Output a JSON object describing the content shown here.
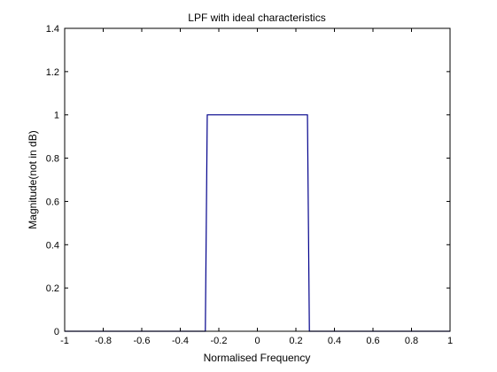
{
  "chart_data": {
    "type": "line",
    "title": "LPF with ideal characteristics",
    "xlabel": "Normalised Frequency",
    "ylabel": "Magnitude(not in dB)",
    "xlim": [
      -1,
      1
    ],
    "ylim": [
      0,
      1.4
    ],
    "xticks": [
      -1,
      -0.8,
      -0.6,
      -0.4,
      -0.2,
      0,
      0.2,
      0.4,
      0.6,
      0.8,
      1
    ],
    "yticks": [
      0,
      0.2,
      0.4,
      0.6,
      0.8,
      1,
      1.2,
      1.4
    ],
    "xtick_labels": [
      "-1",
      "-0.8",
      "-0.6",
      "-0.4",
      "-0.2",
      "0",
      "0.2",
      "0.4",
      "0.6",
      "0.8",
      "1"
    ],
    "ytick_labels": [
      "0",
      "0.2",
      "0.4",
      "0.6",
      "0.8",
      "1",
      "1.2",
      "1.4"
    ],
    "grid": false,
    "series": [
      {
        "color": "#00008b",
        "x": [
          -1,
          -0.27,
          -0.26,
          0.26,
          0.27,
          1
        ],
        "y": [
          0,
          0,
          1,
          1,
          0,
          0
        ]
      }
    ]
  }
}
